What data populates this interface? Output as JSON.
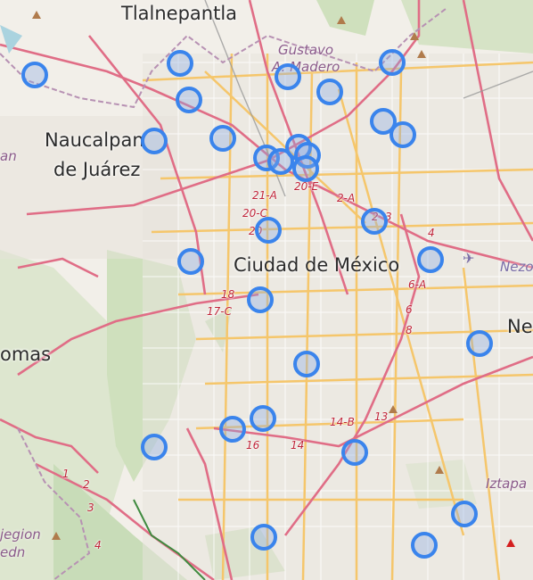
{
  "map": {
    "labels": {
      "tlalnepantla": "Tlalnepantla",
      "gustavo": "Gustavo",
      "madero": "A. Madero",
      "naucalpan1": "Naucalpan",
      "naucalpan2": "de Juárez",
      "ciudad": "Ciudad de México",
      "lomas": "omas",
      "nezo": "Nezo",
      "ne": "Ne",
      "iztapa": "Iztapa",
      "an": "an",
      "jegion": "jegion",
      "edn": "edn"
    },
    "routes": [
      "21-A",
      "20-C",
      "20-E",
      "20",
      "2-A",
      "2",
      "3",
      "4",
      "6-A",
      "6",
      "8",
      "18",
      "17-C",
      "14-B",
      "13",
      "16",
      "14",
      "1",
      "2",
      "3",
      "4"
    ],
    "marker_count": 28,
    "marker_color": "#3a84ec"
  }
}
